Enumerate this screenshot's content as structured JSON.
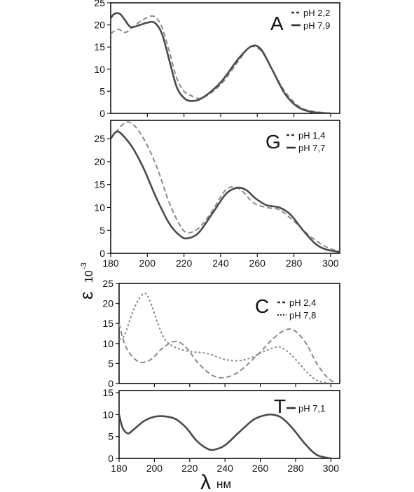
{
  "axes": {
    "ylabel": "ε",
    "ylabel_exp": "10",
    "ylabel_exp_power": "-3",
    "xlabel": "λ",
    "xlabel_unit": "нм"
  },
  "chart_data": [
    {
      "type": "line",
      "panel": "A",
      "letter": "A",
      "xlim": [
        180,
        305
      ],
      "ylim": [
        0,
        25
      ],
      "yticks": [
        0,
        5,
        10,
        15,
        20,
        25
      ],
      "xticks": [
        200,
        220,
        240,
        260,
        280,
        300
      ],
      "show_x_labels": false,
      "series": [
        {
          "name": "pH 2,2",
          "style": "dash",
          "x": [
            180,
            184,
            188,
            192,
            197,
            202,
            205,
            208,
            212,
            216,
            220,
            224,
            230,
            240,
            250,
            256,
            262,
            268,
            275,
            283,
            290,
            300
          ],
          "y": [
            18,
            19,
            18.3,
            19.5,
            21,
            22,
            21.5,
            19.5,
            14,
            8,
            5,
            4,
            3.5,
            6.5,
            12,
            15,
            14.2,
            10,
            5,
            1.5,
            0.5,
            0
          ]
        },
        {
          "name": "pH 7,9",
          "style": "solid",
          "x": [
            180,
            182,
            185,
            188,
            191,
            196,
            200,
            204,
            208,
            212,
            216,
            220,
            224,
            230,
            240,
            250,
            257,
            262,
            268,
            275,
            282,
            290,
            300
          ],
          "y": [
            21.5,
            22.5,
            22.5,
            21,
            19.5,
            20,
            20.5,
            20.5,
            18,
            12,
            6,
            3.5,
            2.8,
            3.5,
            7,
            12.5,
            15.2,
            14.5,
            10,
            4.5,
            1.5,
            0.3,
            0
          ]
        }
      ]
    },
    {
      "type": "line",
      "panel": "G",
      "letter": "G",
      "xlim": [
        180,
        305
      ],
      "ylim": [
        0,
        29
      ],
      "yticks": [
        0,
        5,
        10,
        15,
        20,
        25
      ],
      "xticks": [
        180,
        200,
        220,
        240,
        260,
        280,
        300
      ],
      "show_x_labels": true,
      "series": [
        {
          "name": "pH 1,4",
          "style": "dash",
          "x": [
            180,
            184,
            188,
            192,
            198,
            205,
            212,
            218,
            222,
            228,
            235,
            242,
            247,
            252,
            258,
            265,
            272,
            280,
            288,
            295,
            300,
            305
          ],
          "y": [
            25,
            27,
            28.5,
            28.2,
            25,
            19,
            11,
            6,
            4.5,
            5.5,
            9,
            13.5,
            14.5,
            13.5,
            11,
            10,
            9.5,
            7,
            4,
            2,
            1,
            0.4
          ]
        },
        {
          "name": "pH 7,7",
          "style": "solid",
          "x": [
            180,
            183,
            186,
            192,
            198,
            205,
            212,
            218,
            222,
            228,
            236,
            243,
            249,
            254,
            259,
            265,
            272,
            278,
            285,
            292,
            298,
            305
          ],
          "y": [
            25,
            26.5,
            26,
            23,
            18.5,
            12,
            6.5,
            3.8,
            3.3,
            4.5,
            9,
            13,
            14.3,
            13.8,
            12,
            10.5,
            10,
            8.5,
            5,
            2,
            0.8,
            0.3
          ]
        }
      ]
    },
    {
      "type": "line",
      "panel": "C",
      "letter": "C",
      "xlim": [
        180,
        305
      ],
      "ylim": [
        0,
        25
      ],
      "yticks": [
        0,
        5,
        10,
        15,
        20,
        25
      ],
      "xticks": [
        200,
        220,
        240,
        260,
        280,
        300
      ],
      "show_x_labels": false,
      "series": [
        {
          "name": "pH 2,4",
          "style": "dash",
          "x": [
            180,
            183,
            187,
            192,
            198,
            205,
            212,
            218,
            225,
            233,
            240,
            248,
            258,
            268,
            275,
            280,
            286,
            292,
            298,
            303
          ],
          "y": [
            15,
            10,
            7,
            5.3,
            6,
            9,
            10.5,
            9,
            5,
            2,
            1.5,
            3,
            7,
            11.5,
            13.5,
            13,
            10,
            5,
            1.5,
            0
          ]
        },
        {
          "name": "pH 7,8",
          "style": "dot",
          "x": [
            180,
            183,
            187,
            191,
            195,
            198,
            202,
            206,
            212,
            220,
            230,
            240,
            248,
            255,
            262,
            268,
            272,
            278,
            285,
            292,
            300
          ],
          "y": [
            11,
            12,
            17,
            21,
            22.5,
            20,
            15,
            11,
            9,
            8,
            7.5,
            6,
            5.7,
            6.5,
            8,
            9,
            9,
            7,
            3.5,
            0.8,
            0
          ]
        }
      ]
    },
    {
      "type": "line",
      "panel": "T",
      "letter": "T",
      "xlim": [
        180,
        305
      ],
      "ylim": [
        0,
        15.5
      ],
      "yticks": [
        0,
        5,
        10,
        15
      ],
      "xticks": [
        180,
        200,
        220,
        240,
        260,
        280,
        300
      ],
      "show_x_labels": true,
      "series": [
        {
          "name": "pH 7,1",
          "style": "solid",
          "x": [
            180,
            182,
            185,
            188,
            194,
            200,
            206,
            212,
            218,
            224,
            230,
            234,
            240,
            248,
            256,
            262,
            267,
            272,
            278,
            285,
            292,
            300
          ],
          "y": [
            10,
            7,
            5.7,
            6.5,
            8.5,
            9.5,
            9.6,
            9,
            7,
            4,
            2.2,
            2,
            3,
            6,
            8.8,
            9.8,
            10,
            9.3,
            7,
            3.5,
            0.8,
            0
          ]
        }
      ]
    }
  ]
}
